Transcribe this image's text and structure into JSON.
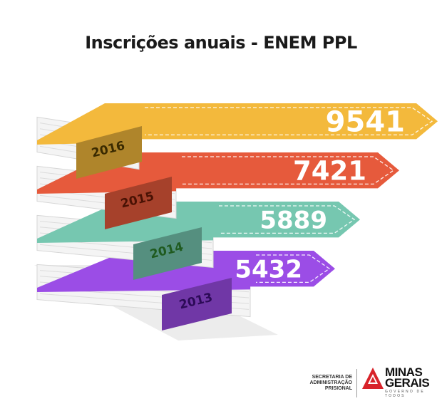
{
  "title": "Inscrições anuais - ENEM PPL",
  "chart_data": {
    "type": "bar",
    "orientation": "horizontal",
    "categories": [
      "2016",
      "2015",
      "2014",
      "2013"
    ],
    "values": [
      9541,
      7421,
      5889,
      5432
    ],
    "title": "Inscrições anuais - ENEM PPL",
    "colors": [
      "#f3b93c",
      "#e65a3c",
      "#76c7b0",
      "#9b4de6"
    ],
    "label_colors": [
      "#3a2a00",
      "#4a1204",
      "#1f5a1f",
      "#2c0a57"
    ]
  },
  "footer": {
    "secretaria": "SECRETARIA DE ADMINISTRAÇÃO PRISIONAL",
    "logo_line1": "MINAS",
    "logo_line2": "GERAIS",
    "logo_tagline": "GOVERNO DE TODOS",
    "logo_color": "#d8232a"
  }
}
